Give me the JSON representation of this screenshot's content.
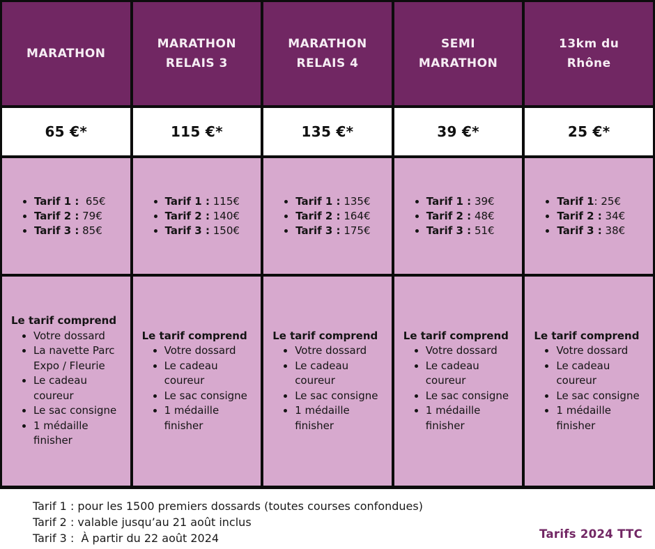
{
  "colors": {
    "header_bg": "#712763",
    "header_text": "#f6edf4",
    "row_bg": "#d7a9ce",
    "price_bg": "#ffffff",
    "border": "#0c0c0c",
    "accent_text": "#722764"
  },
  "columns": [
    {
      "header_lines": [
        "MARATHON"
      ],
      "price": "65 €*",
      "tarifs": [
        {
          "label": "Tarif 1 :",
          "value": "  65€"
        },
        {
          "label": "Tarif 2 :",
          "value": " 79€"
        },
        {
          "label": "Tarif 3 :",
          "value": " 85€"
        }
      ],
      "includes_title": "Le tarif comprend",
      "includes": [
        "Votre dossard",
        "La navette Parc Expo / Fleurie",
        "Le cadeau coureur",
        "Le sac consigne",
        "1 médaille finisher"
      ]
    },
    {
      "header_lines": [
        "MARATHON",
        "RELAIS 3"
      ],
      "price": "115 €*",
      "tarifs": [
        {
          "label": "Tarif 1 :",
          "value": " 115€"
        },
        {
          "label": "Tarif 2 :",
          "value": " 140€"
        },
        {
          "label": "Tarif 3 :",
          "value": " 150€"
        }
      ],
      "includes_title": "Le tarif comprend",
      "includes": [
        "Votre dossard",
        "Le cadeau coureur",
        "Le sac consigne",
        "1 médaille finisher"
      ]
    },
    {
      "header_lines": [
        "MARATHON",
        "RELAIS 4"
      ],
      "price": "135 €*",
      "tarifs": [
        {
          "label": "Tarif 1 :",
          "value": " 135€"
        },
        {
          "label": "Tarif 2 :",
          "value": " 164€"
        },
        {
          "label": "Tarif 3 :",
          "value": " 175€"
        }
      ],
      "includes_title": "Le tarif comprend",
      "includes": [
        "Votre dossard",
        "Le cadeau coureur",
        "Le sac consigne",
        "1 médaille finisher"
      ]
    },
    {
      "header_lines": [
        "SEMI",
        "MARATHON"
      ],
      "price": "39 €*",
      "tarifs": [
        {
          "label": "Tarif 1 :",
          "value": " 39€"
        },
        {
          "label": "Tarif 2 :",
          "value": " 48€"
        },
        {
          "label": "Tarif 3 :",
          "value": " 51€"
        }
      ],
      "includes_title": "Le tarif comprend",
      "includes": [
        "Votre dossard",
        "Le cadeau coureur",
        "Le sac consigne",
        "1 médaille finisher"
      ]
    },
    {
      "header_lines": [
        "13km du",
        "Rhône"
      ],
      "price": "25 €*",
      "tarifs": [
        {
          "label": "Tarif 1",
          "value": ": 25€"
        },
        {
          "label": "Tarif 2 :",
          "value": " 34€"
        },
        {
          "label": "Tarif 3 :",
          "value": " 38€"
        }
      ],
      "includes_title": "Le tarif comprend",
      "includes": [
        "Votre dossard",
        "Le cadeau coureur",
        "Le sac consigne",
        "1 médaille finisher"
      ]
    }
  ],
  "footnotes": [
    "Tarif 1 : pour les 1500 premiers dossards (toutes courses confondues)",
    "Tarif 2 : valable jusqu’au 21 août inclus",
    "Tarif 3 :  À partir du 22 août 2024"
  ],
  "footer_right": "Tarifs 2024 TTC"
}
